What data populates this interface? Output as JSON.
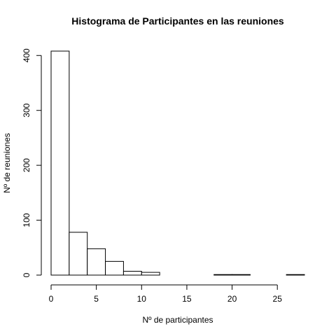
{
  "chart_data": {
    "type": "bar",
    "title": "Histograma de Participantes en las reuniones",
    "xlabel": "Nº de participantes",
    "ylabel": "Nº de reuniones",
    "bins": [
      {
        "from": 0,
        "to": 2,
        "count": 408
      },
      {
        "from": 2,
        "to": 4,
        "count": 78
      },
      {
        "from": 4,
        "to": 6,
        "count": 48
      },
      {
        "from": 6,
        "to": 8,
        "count": 25
      },
      {
        "from": 8,
        "to": 10,
        "count": 7
      },
      {
        "from": 10,
        "to": 12,
        "count": 5
      },
      {
        "from": 12,
        "to": 14,
        "count": 0
      },
      {
        "from": 14,
        "to": 16,
        "count": 0
      },
      {
        "from": 16,
        "to": 18,
        "count": 0
      },
      {
        "from": 18,
        "to": 20,
        "count": 1
      },
      {
        "from": 20,
        "to": 22,
        "count": 1
      },
      {
        "from": 22,
        "to": 24,
        "count": 0
      },
      {
        "from": 24,
        "to": 26,
        "count": 0
      },
      {
        "from": 26,
        "to": 28,
        "count": 1
      }
    ],
    "xticks": [
      0,
      5,
      10,
      15,
      20,
      25
    ],
    "yticks": [
      0,
      100,
      200,
      300,
      400
    ],
    "xlim": [
      0,
      28
    ],
    "ylim": [
      0,
      408
    ],
    "grid": false,
    "colors": {
      "bar_fill": "#ffffff",
      "bar_stroke": "#000000"
    }
  }
}
